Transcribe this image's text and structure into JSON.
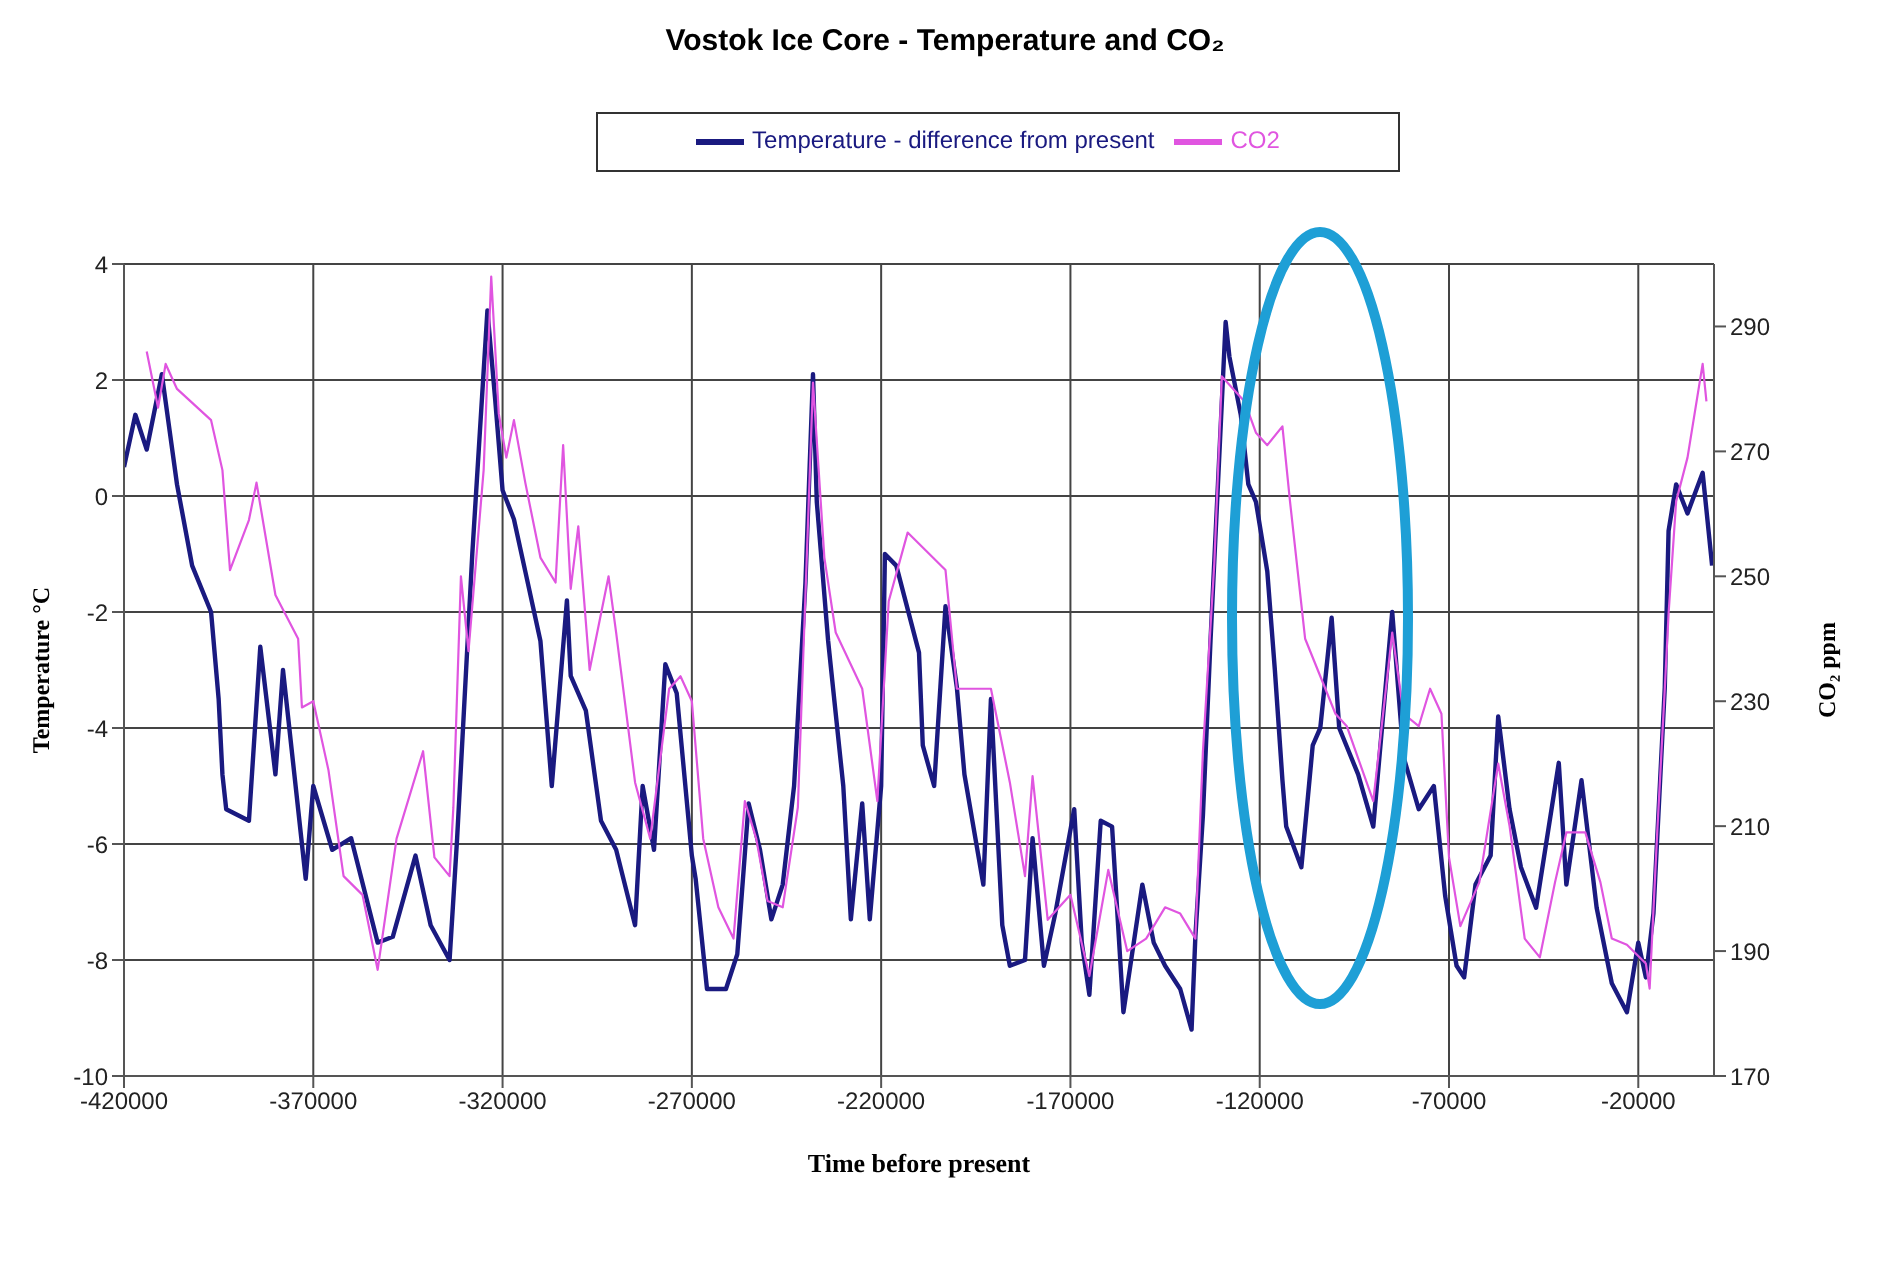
{
  "chart_data": {
    "type": "line",
    "title": "Vostok Ice Core - Temperature and CO₂",
    "xlabel": "Time before present",
    "ylabel": "Temperature °C",
    "y2label": "CO₂ ppm",
    "xlim": [
      -420000,
      0
    ],
    "xticks": [
      -420000,
      -370000,
      -320000,
      -270000,
      -220000,
      -170000,
      -120000,
      -70000,
      -20000
    ],
    "ylim": [
      -10,
      4
    ],
    "yticks": [
      -10,
      -8,
      -6,
      -4,
      -2,
      0,
      2,
      4
    ],
    "y2lim": [
      170,
      300
    ],
    "y2ticks": [
      170,
      190,
      210,
      230,
      250,
      270,
      290
    ],
    "grid": true,
    "legend": "top",
    "series": [
      {
        "name": "Temperature - difference from present",
        "color": "#1a1a80",
        "x": [
          -420000,
          -417000,
          -414000,
          -410000,
          -406000,
          -402000,
          -397000,
          -395000,
          -394000,
          -393000,
          -387000,
          -384000,
          -380000,
          -378000,
          -372000,
          -370000,
          -365000,
          -360000,
          -353000,
          -349000,
          -343000,
          -339000,
          -334000,
          -332000,
          -328000,
          -324000,
          -322000,
          -320000,
          -317000,
          -314000,
          -310000,
          -307000,
          -303000,
          -302000,
          -298000,
          -294000,
          -290000,
          -285000,
          -283000,
          -280000,
          -277000,
          -274000,
          -270000,
          -269000,
          -266000,
          -261000,
          -258000,
          -255000,
          -252000,
          -249000,
          -246000,
          -243000,
          -240000,
          -238000,
          -237000,
          -234000,
          -230000,
          -228000,
          -225000,
          -223000,
          -220000,
          -219000,
          -216000,
          -214000,
          -210000,
          -209000,
          -206000,
          -203000,
          -200000,
          -198000,
          -193000,
          -191000,
          -188000,
          -186000,
          -182000,
          -180000,
          -177000,
          -174000,
          -169000,
          -167000,
          -165000,
          -162000,
          -159000,
          -156000,
          -151000,
          -148000,
          -145000,
          -141000,
          -138000,
          -137000,
          -135000,
          -133000,
          -129000,
          -128000,
          -125000,
          -123000,
          -121000,
          -118000,
          -116000,
          -114000,
          -113000,
          -109000,
          -106000,
          -104000,
          -101000,
          -99000,
          -94000,
          -90000,
          -85000,
          -82000,
          -78000,
          -74000,
          -71000,
          -68000,
          -66000,
          -63000,
          -59000,
          -57000,
          -54000,
          -51000,
          -47000,
          -41000,
          -39000,
          -35000,
          -31000,
          -27000,
          -23000,
          -20000,
          -18000,
          -16000,
          -13000,
          -12000,
          -10000,
          -7000,
          -3000,
          -500
        ],
        "values": [
          0.5,
          1.4,
          0.8,
          2.1,
          0.2,
          -1.2,
          -2,
          -3.5,
          -4.8,
          -5.4,
          -5.6,
          -2.6,
          -4.8,
          -3,
          -6.6,
          -5,
          -6.1,
          -5.9,
          -7.7,
          -7.6,
          -6.2,
          -7.4,
          -8,
          -5.9,
          -1,
          3.2,
          1.7,
          0.1,
          -0.4,
          -1.3,
          -2.5,
          -5,
          -1.8,
          -3.1,
          -3.7,
          -5.6,
          -6.1,
          -7.4,
          -5,
          -6.1,
          -2.9,
          -3.4,
          -6.2,
          -6.6,
          -8.5,
          -8.5,
          -7.9,
          -5.3,
          -6.1,
          -7.3,
          -6.7,
          -5,
          -1.5,
          2.1,
          -0.1,
          -2.5,
          -5,
          -7.3,
          -5.3,
          -7.3,
          -5,
          -1,
          -1.2,
          -1.7,
          -2.7,
          -4.3,
          -5,
          -1.9,
          -3.3,
          -4.8,
          -6.7,
          -3.5,
          -7.4,
          -8.1,
          -8,
          -5.9,
          -8.1,
          -7.2,
          -5.4,
          -7.7,
          -8.6,
          -5.6,
          -5.7,
          -8.9,
          -6.7,
          -7.7,
          -8.1,
          -8.5,
          -9.2,
          -7.6,
          -5.5,
          -2.5,
          3,
          2.4,
          1.4,
          0.2,
          -0.1,
          -1.3,
          -3,
          -4.9,
          -5.7,
          -6.4,
          -4.3,
          -4,
          -2.1,
          -4,
          -4.8,
          -5.7,
          -2,
          -4.5,
          -5.4,
          -5,
          -6.9,
          -8.1,
          -8.3,
          -6.7,
          -6.2,
          -3.8,
          -5.4,
          -6.4,
          -7.1,
          -4.6,
          -6.7,
          -4.9,
          -7.1,
          -8.4,
          -8.9,
          -7.7,
          -8.3,
          -7.2,
          -3.3,
          -0.6,
          0.2,
          -0.3,
          0.4,
          -1.2
        ]
      },
      {
        "name": "CO2",
        "color": "#e055e0",
        "axis": "y2",
        "x": [
          -414000,
          -411000,
          -409000,
          -406000,
          -397000,
          -394000,
          -392000,
          -387000,
          -385000,
          -380000,
          -374000,
          -373000,
          -370000,
          -366000,
          -362000,
          -357000,
          -353000,
          -348000,
          -341000,
          -338000,
          -334000,
          -333000,
          -331000,
          -329000,
          -325000,
          -323000,
          -321000,
          -319000,
          -317000,
          -314000,
          -310000,
          -306000,
          -304000,
          -302000,
          -300000,
          -297000,
          -292000,
          -290000,
          -285000,
          -281000,
          -276000,
          -273000,
          -270000,
          -267000,
          -263000,
          -259000,
          -256000,
          -253000,
          -250000,
          -246000,
          -242000,
          -240000,
          -238000,
          -235000,
          -232000,
          -225000,
          -221000,
          -218000,
          -213000,
          -203000,
          -200000,
          -191000,
          -186000,
          -182000,
          -180000,
          -176000,
          -170000,
          -165000,
          -160000,
          -155000,
          -150000,
          -145000,
          -141000,
          -137000,
          -135000,
          -132000,
          -130000,
          -127000,
          -124000,
          -121000,
          -118000,
          -114000,
          -112000,
          -108000,
          -104000,
          -100000,
          -97000,
          -90000,
          -85000,
          -82000,
          -78000,
          -75000,
          -72000,
          -70000,
          -67000,
          -62000,
          -57000,
          -54000,
          -50000,
          -46000,
          -42000,
          -39000,
          -34000,
          -30000,
          -27000,
          -23000,
          -18000,
          -17000,
          -15000,
          -13000,
          -12000,
          -10000,
          -7000,
          -3000,
          -2000
        ],
        "values": [
          286,
          277,
          284,
          280,
          275,
          267,
          251,
          259,
          265,
          247,
          240,
          229,
          230,
          219,
          202,
          199,
          187,
          208,
          222,
          205,
          202,
          213,
          250,
          238,
          267,
          298,
          276,
          269,
          275,
          265,
          253,
          249,
          271,
          248,
          258,
          235,
          250,
          241,
          217,
          208,
          232,
          234,
          230,
          208,
          197,
          192,
          214,
          208,
          198,
          197,
          213,
          247,
          281,
          253,
          241,
          232,
          214,
          246,
          257,
          251,
          232,
          232,
          217,
          202,
          218,
          195,
          199,
          186,
          203,
          190,
          192,
          197,
          196,
          192,
          222,
          252,
          282,
          280,
          278,
          273,
          271,
          274,
          262,
          240,
          234,
          228,
          226,
          214,
          241,
          228,
          226,
          232,
          228,
          205,
          194,
          201,
          220,
          210,
          192,
          189,
          201,
          209,
          209,
          201,
          192,
          191,
          188,
          184,
          209,
          232,
          244,
          262,
          269,
          284,
          278
        ]
      }
    ]
  }
}
